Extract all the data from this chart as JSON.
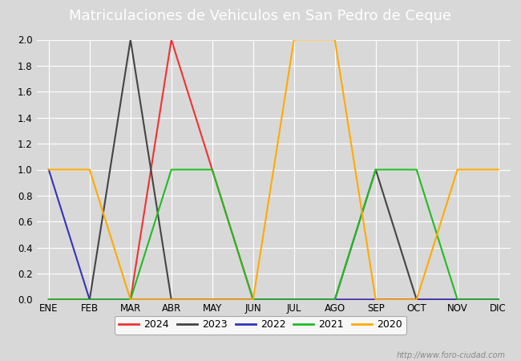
{
  "title": "Matriculaciones de Vehiculos en San Pedro de Ceque",
  "months": [
    "ENE",
    "FEB",
    "MAR",
    "ABR",
    "MAY",
    "JUN",
    "JUL",
    "AGO",
    "SEP",
    "OCT",
    "NOV",
    "DIC"
  ],
  "series": {
    "2024": {
      "values": [
        0,
        0,
        0,
        2,
        1,
        0,
        0,
        0,
        0,
        0,
        0,
        0
      ],
      "color": "#ee3333"
    },
    "2023": {
      "values": [
        0,
        0,
        2,
        0,
        0,
        0,
        0,
        0,
        1,
        0,
        0,
        0
      ],
      "color": "#444444"
    },
    "2022": {
      "values": [
        1,
        0,
        0,
        0,
        0,
        0,
        0,
        0,
        0,
        0,
        0,
        0
      ],
      "color": "#3333bb"
    },
    "2021": {
      "values": [
        0,
        0,
        0,
        1,
        1,
        0,
        0,
        0,
        1,
        1,
        0,
        0
      ],
      "color": "#22bb22"
    },
    "2020": {
      "values": [
        1,
        1,
        0,
        0,
        0,
        0,
        2,
        2,
        0,
        0,
        1,
        1
      ],
      "color": "#ffaa00"
    }
  },
  "ylim": [
    0,
    2.0
  ],
  "yticks": [
    0.0,
    0.2,
    0.4,
    0.6,
    0.8,
    1.0,
    1.2,
    1.4,
    1.6,
    1.8,
    2.0
  ],
  "bg_color": "#d8d8d8",
  "plot_bg_color": "#d8d8d8",
  "title_bg_color": "#5b8ec4",
  "title_text_color": "#ffffff",
  "grid_color": "#ffffff",
  "watermark": "http://www.foro-ciudad.com",
  "legend_order": [
    "2024",
    "2023",
    "2022",
    "2021",
    "2020"
  ],
  "title_fontsize": 13,
  "tick_fontsize": 8.5
}
